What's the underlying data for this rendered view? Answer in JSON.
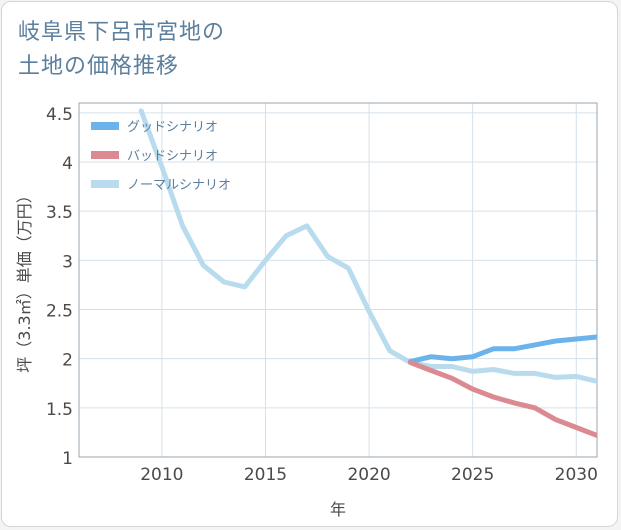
{
  "title": {
    "line1": "岐阜県下呂市宮地の",
    "line2": "土地の価格推移"
  },
  "chart_data": {
    "type": "line",
    "xlabel": "年",
    "ylabel": "坪（3.3㎡）単価（万円）",
    "xlim": [
      2006,
      2031
    ],
    "ylim": [
      1,
      4.6
    ],
    "xticks": [
      2010,
      2015,
      2020,
      2025,
      2030
    ],
    "yticks": [
      1,
      1.5,
      2,
      2.5,
      3,
      3.5,
      4,
      4.5
    ],
    "ytick_labels": [
      "1",
      "1.5",
      "2",
      "2.5",
      "3",
      "3.5",
      "4",
      "4.5"
    ],
    "grid": true,
    "legend_position": "top-left",
    "series": [
      {
        "name": "グッドシナリオ",
        "color": "#6bb3ea",
        "x": [
          2022,
          2023,
          2024,
          2025,
          2026,
          2027,
          2028,
          2029,
          2030,
          2031
        ],
        "y": [
          1.97,
          2.02,
          2.0,
          2.02,
          2.1,
          2.1,
          2.14,
          2.18,
          2.2,
          2.22
        ]
      },
      {
        "name": "バッドシナリオ",
        "color": "#da8a90",
        "x": [
          2022,
          2023,
          2024,
          2025,
          2026,
          2027,
          2028,
          2029,
          2030,
          2031
        ],
        "y": [
          1.96,
          1.88,
          1.8,
          1.69,
          1.61,
          1.55,
          1.5,
          1.38,
          1.3,
          1.22
        ]
      },
      {
        "name": "ノーマルシナリオ",
        "color": "#b8dced",
        "x": [
          2009,
          2010,
          2011,
          2012,
          2013,
          2014,
          2015,
          2016,
          2017,
          2018,
          2019,
          2020,
          2021,
          2022,
          2023,
          2024,
          2025,
          2026,
          2027,
          2028,
          2029,
          2030,
          2031
        ],
        "y": [
          4.52,
          3.95,
          3.35,
          2.95,
          2.78,
          2.73,
          3.0,
          3.25,
          3.35,
          3.04,
          2.92,
          2.48,
          2.08,
          1.96,
          1.92,
          1.92,
          1.87,
          1.89,
          1.85,
          1.85,
          1.81,
          1.82,
          1.77
        ]
      }
    ]
  }
}
